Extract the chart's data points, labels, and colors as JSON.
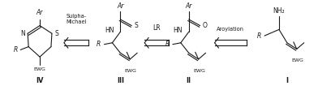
{
  "bg_color": "#ffffff",
  "figure_width": 3.92,
  "figure_height": 1.11,
  "dpi": 100,
  "text_color": "#1a1a1a",
  "line_color": "#1a1a1a",
  "arrow_labels": [
    "Sulpha-\nMichael",
    "LR",
    "Aroylation"
  ],
  "compound_labels": [
    "IV",
    "III",
    "II",
    "I"
  ]
}
